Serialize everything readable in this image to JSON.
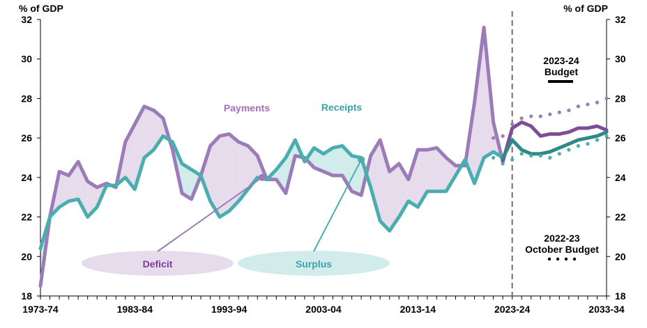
{
  "chart_data": {
    "type": "line",
    "ylabel_left": "% of GDP",
    "ylabel_right": "% of GDP",
    "ylim": [
      18,
      32
    ],
    "yticks": [
      18,
      20,
      22,
      24,
      26,
      28,
      30,
      32
    ],
    "xlim": [
      0,
      60
    ],
    "x_start_year": 1973,
    "xtick_labels": [
      {
        "i": 0,
        "label": "1973-74"
      },
      {
        "i": 10,
        "label": "1983-84"
      },
      {
        "i": 20,
        "label": "1993-94"
      },
      {
        "i": 30,
        "label": "2003-04"
      },
      {
        "i": 40,
        "label": "2013-14"
      },
      {
        "i": 50,
        "label": "2023-24"
      },
      {
        "i": 60,
        "label": "2033-34"
      }
    ],
    "forecast_divider_index": 50,
    "series": [
      {
        "name": "Payments",
        "color": "#9b7bb8",
        "x": [
          0,
          1,
          2,
          3,
          4,
          5,
          6,
          7,
          8,
          9,
          10,
          11,
          12,
          13,
          14,
          15,
          16,
          17,
          18,
          19,
          20,
          21,
          22,
          23,
          24,
          25,
          26,
          27,
          28,
          29,
          30,
          31,
          32,
          33,
          34,
          35,
          36,
          37,
          38,
          39,
          40,
          41,
          42,
          43,
          44,
          45,
          46,
          47,
          48,
          49
        ],
        "values": [
          18.5,
          22.0,
          24.3,
          24.1,
          24.8,
          23.8,
          23.5,
          23.7,
          23.5,
          25.8,
          26.7,
          27.6,
          27.4,
          27.0,
          25.4,
          23.2,
          22.9,
          24.1,
          25.6,
          26.1,
          26.2,
          25.8,
          25.6,
          25.1,
          23.9,
          23.9,
          23.2,
          25.1,
          25.0,
          24.5,
          24.3,
          24.1,
          24.1,
          23.3,
          23.1,
          25.1,
          25.9,
          24.3,
          24.7,
          23.9,
          25.4,
          25.4,
          25.5,
          25.0,
          24.6,
          24.6,
          27.8,
          31.6,
          26.8,
          24.8
        ]
      },
      {
        "name": "Receipts",
        "color": "#4aaeb0",
        "x": [
          0,
          1,
          2,
          3,
          4,
          5,
          6,
          7,
          8,
          9,
          10,
          11,
          12,
          13,
          14,
          15,
          16,
          17,
          18,
          19,
          20,
          21,
          22,
          23,
          24,
          25,
          26,
          27,
          28,
          29,
          30,
          31,
          32,
          33,
          34,
          35,
          36,
          37,
          38,
          39,
          40,
          41,
          42,
          43,
          44,
          45,
          46,
          47,
          48,
          49
        ],
        "values": [
          20.4,
          22.0,
          22.5,
          22.8,
          22.9,
          22.0,
          22.5,
          23.6,
          23.6,
          24.0,
          23.4,
          25.0,
          25.4,
          26.1,
          25.8,
          24.7,
          24.4,
          24.1,
          22.8,
          22.0,
          22.3,
          22.8,
          23.4,
          24.0,
          23.9,
          24.4,
          25.0,
          25.9,
          24.8,
          25.5,
          25.2,
          25.5,
          25.6,
          25.1,
          25.0,
          23.5,
          21.8,
          21.3,
          22.0,
          22.8,
          22.5,
          23.3,
          23.3,
          23.3,
          24.1,
          24.9,
          23.7,
          25.0,
          25.3,
          25.0
        ]
      },
      {
        "name": "Payments 2023-24 Budget",
        "color": "#7e4d97",
        "x": [
          49,
          50,
          51,
          52,
          53,
          54,
          55,
          56,
          57,
          58,
          59,
          60
        ],
        "values": [
          24.8,
          26.5,
          26.8,
          26.6,
          26.1,
          26.2,
          26.2,
          26.3,
          26.5,
          26.5,
          26.6,
          26.4
        ]
      },
      {
        "name": "Receipts 2023-24 Budget",
        "color": "#2e8a84",
        "x": [
          49,
          50,
          51,
          52,
          53,
          54,
          55,
          56,
          57,
          58,
          59,
          60
        ],
        "values": [
          25.0,
          25.9,
          25.4,
          25.2,
          25.2,
          25.3,
          25.5,
          25.7,
          25.9,
          26.0,
          26.1,
          26.3
        ]
      },
      {
        "name": "Payments 2022-23 October Budget",
        "color": "#9b7bb8",
        "dotted": true,
        "x": [
          48,
          49,
          50,
          51,
          52,
          53,
          54,
          55,
          56,
          57,
          58,
          59,
          60
        ],
        "values": [
          26.0,
          26.1,
          26.7,
          27.0,
          27.1,
          27.1,
          27.2,
          27.3,
          27.4,
          27.6,
          27.7,
          27.8,
          28.0
        ]
      },
      {
        "name": "Receipts 2022-23 October Budget",
        "color": "#4aaeb0",
        "dotted": true,
        "x": [
          48,
          49,
          50,
          51,
          52,
          53,
          54,
          55,
          56,
          57,
          58,
          59,
          60
        ],
        "values": [
          25.0,
          24.7,
          24.9,
          25.2,
          25.1,
          25.1,
          25.0,
          25.2,
          25.4,
          25.6,
          25.7,
          25.9,
          26.1
        ]
      }
    ],
    "annotations": {
      "payments_label": "Payments",
      "receipts_label": "Receipts",
      "deficit_label": "Deficit",
      "surplus_label": "Surplus",
      "deficit_marker": {
        "x": 23.5,
        "y": 24.0
      },
      "surplus_marker": {
        "x": 34.0,
        "y": 24.9
      },
      "legend_budget_line1": "2023-24",
      "legend_budget_line2": "Budget",
      "legend_october_line1": "2022-23",
      "legend_october_line2": "October Budget"
    },
    "colors": {
      "payments": "#9b7bb8",
      "receipts": "#4aaeb0",
      "payments_budget": "#7e4d97",
      "receipts_budget": "#2e8a84",
      "deficit_fill": "#e6dcec",
      "surplus_fill": "#d2ecec",
      "deficit_text": "#7e3a97",
      "surplus_text": "#3aa3a8",
      "payments_text": "#a36fbf",
      "receipts_text": "#3aa3a8"
    }
  }
}
